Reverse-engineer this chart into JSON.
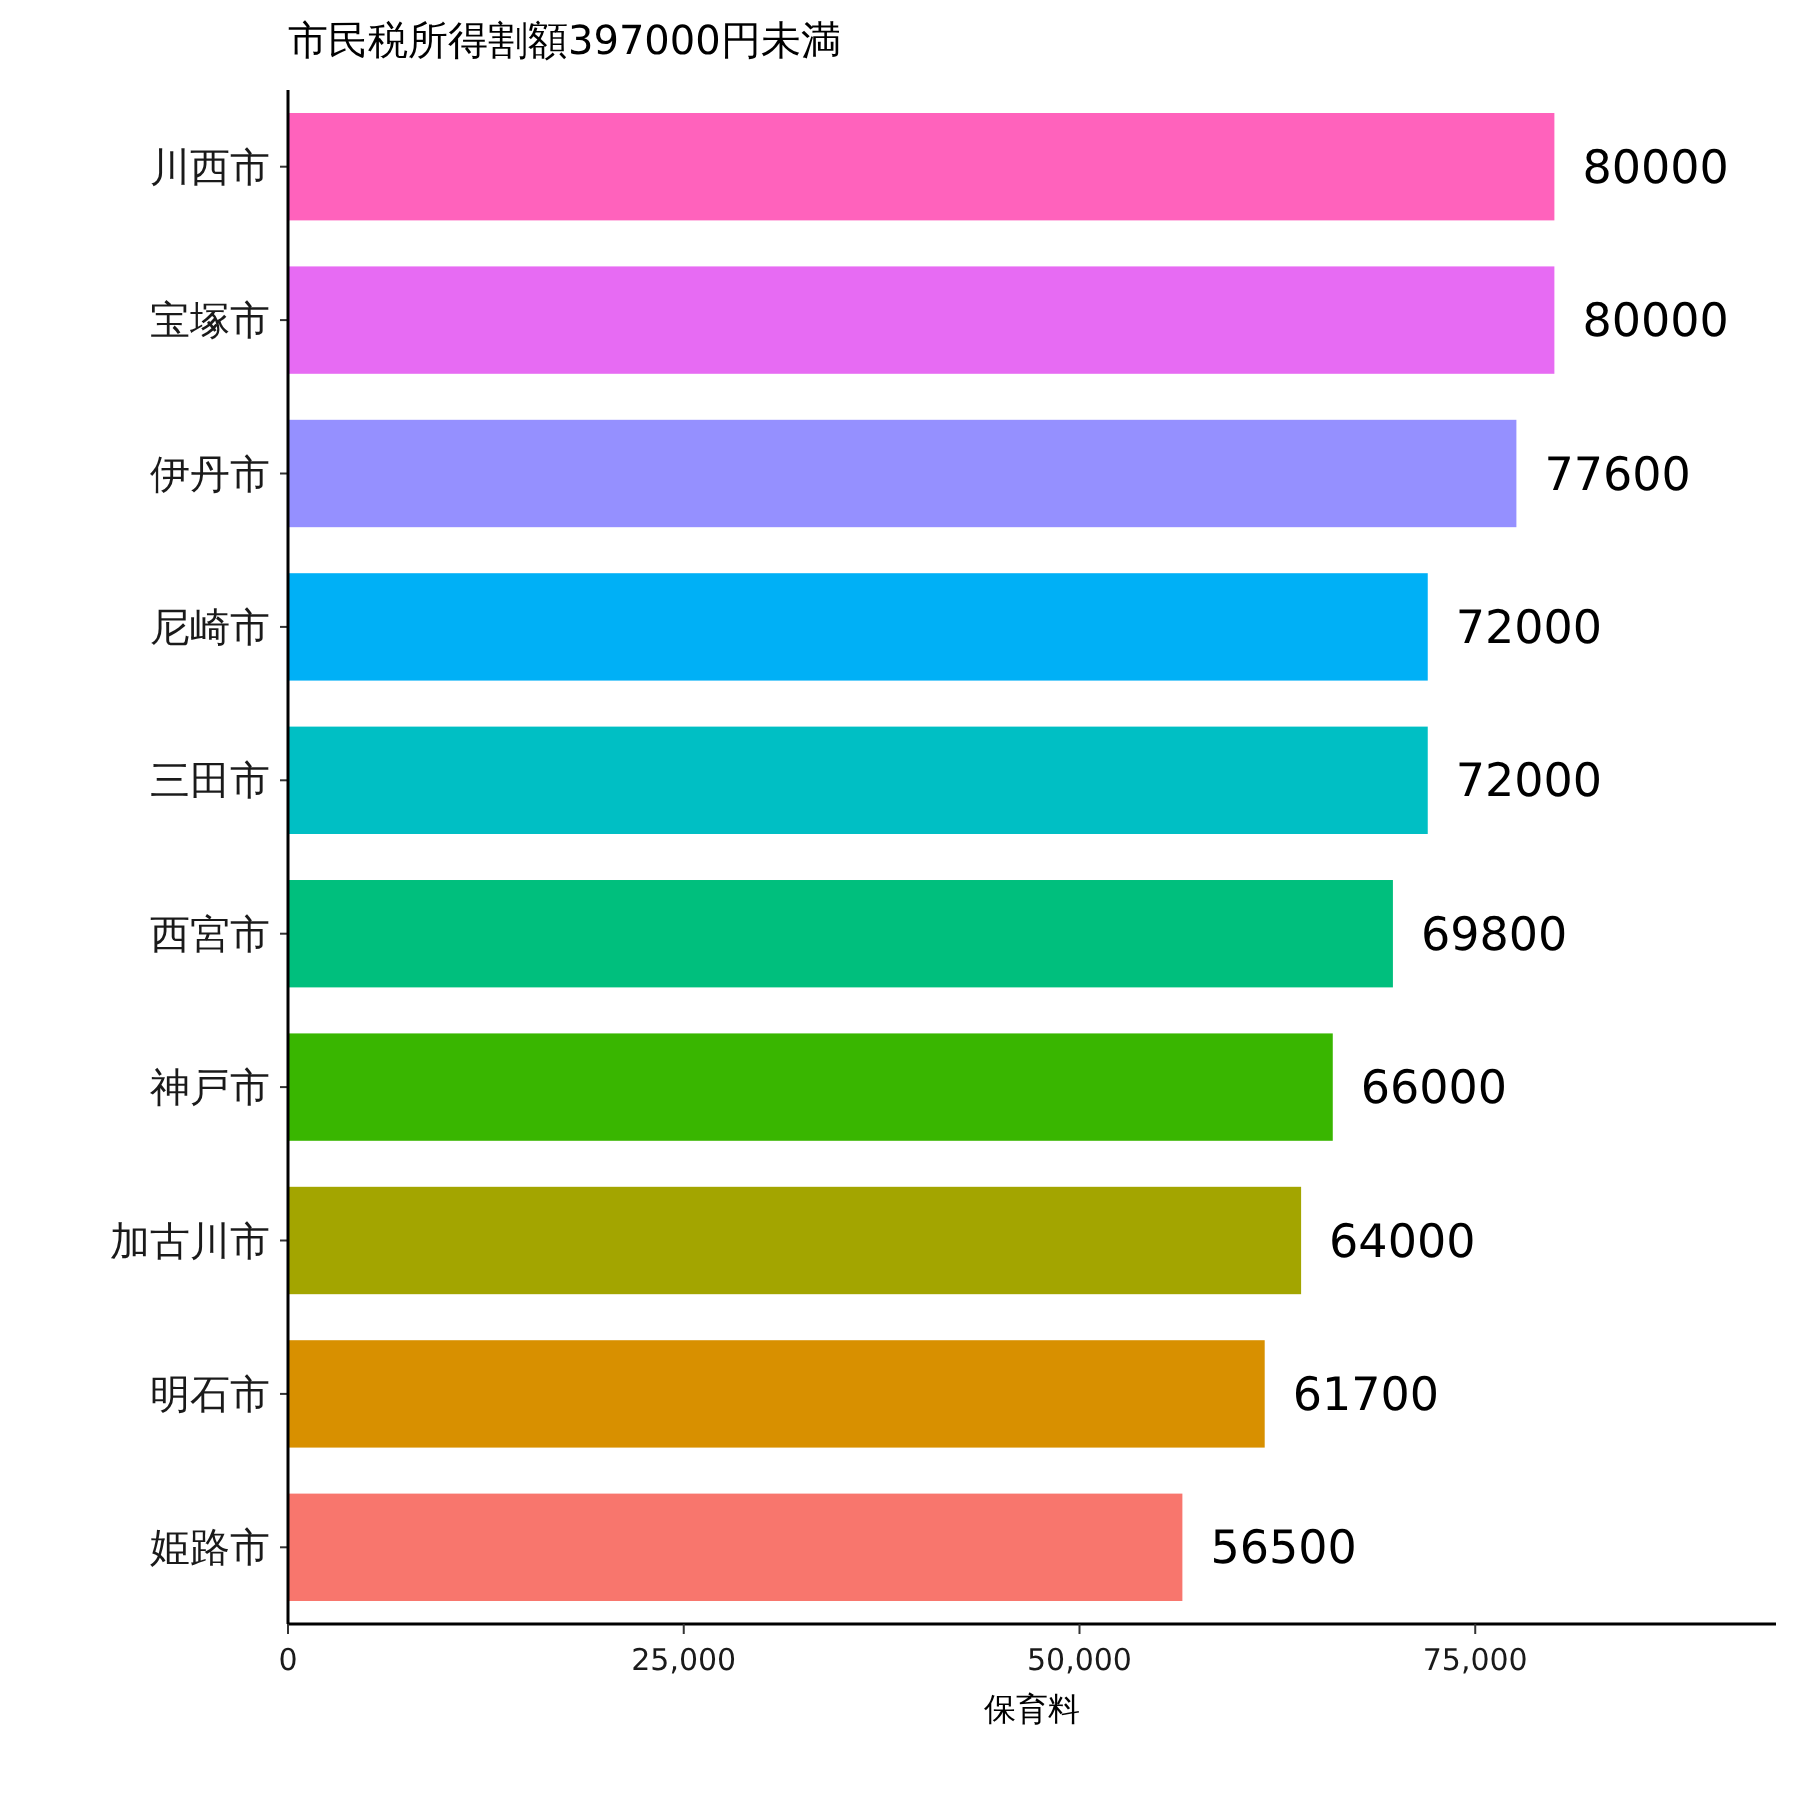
{
  "chart_data": {
    "type": "bar",
    "orientation": "horizontal",
    "title": "市民税所得割額397000円未満",
    "xlabel": "保育料",
    "categories": [
      "川西市",
      "宝塚市",
      "伊丹市",
      "尼崎市",
      "三田市",
      "西宮市",
      "神戸市",
      "加古川市",
      "明石市",
      "姫路市"
    ],
    "values": [
      80000,
      80000,
      77600,
      72000,
      72000,
      69800,
      66000,
      64000,
      61700,
      56500
    ],
    "colors": [
      "#ff62bc",
      "#e76bf3",
      "#9590ff",
      "#00b0f6",
      "#00bfc4",
      "#00bf7d",
      "#39b600",
      "#a3a500",
      "#d89000",
      "#f8766d"
    ],
    "xlim": [
      0,
      94000
    ],
    "xticks": [
      0,
      {
        "value": 25000,
        "label": "25,000"
      },
      {
        "value": 50000,
        "label": "50,000"
      },
      {
        "value": 75000,
        "label": "75,000"
      }
    ],
    "data_labels": true
  }
}
